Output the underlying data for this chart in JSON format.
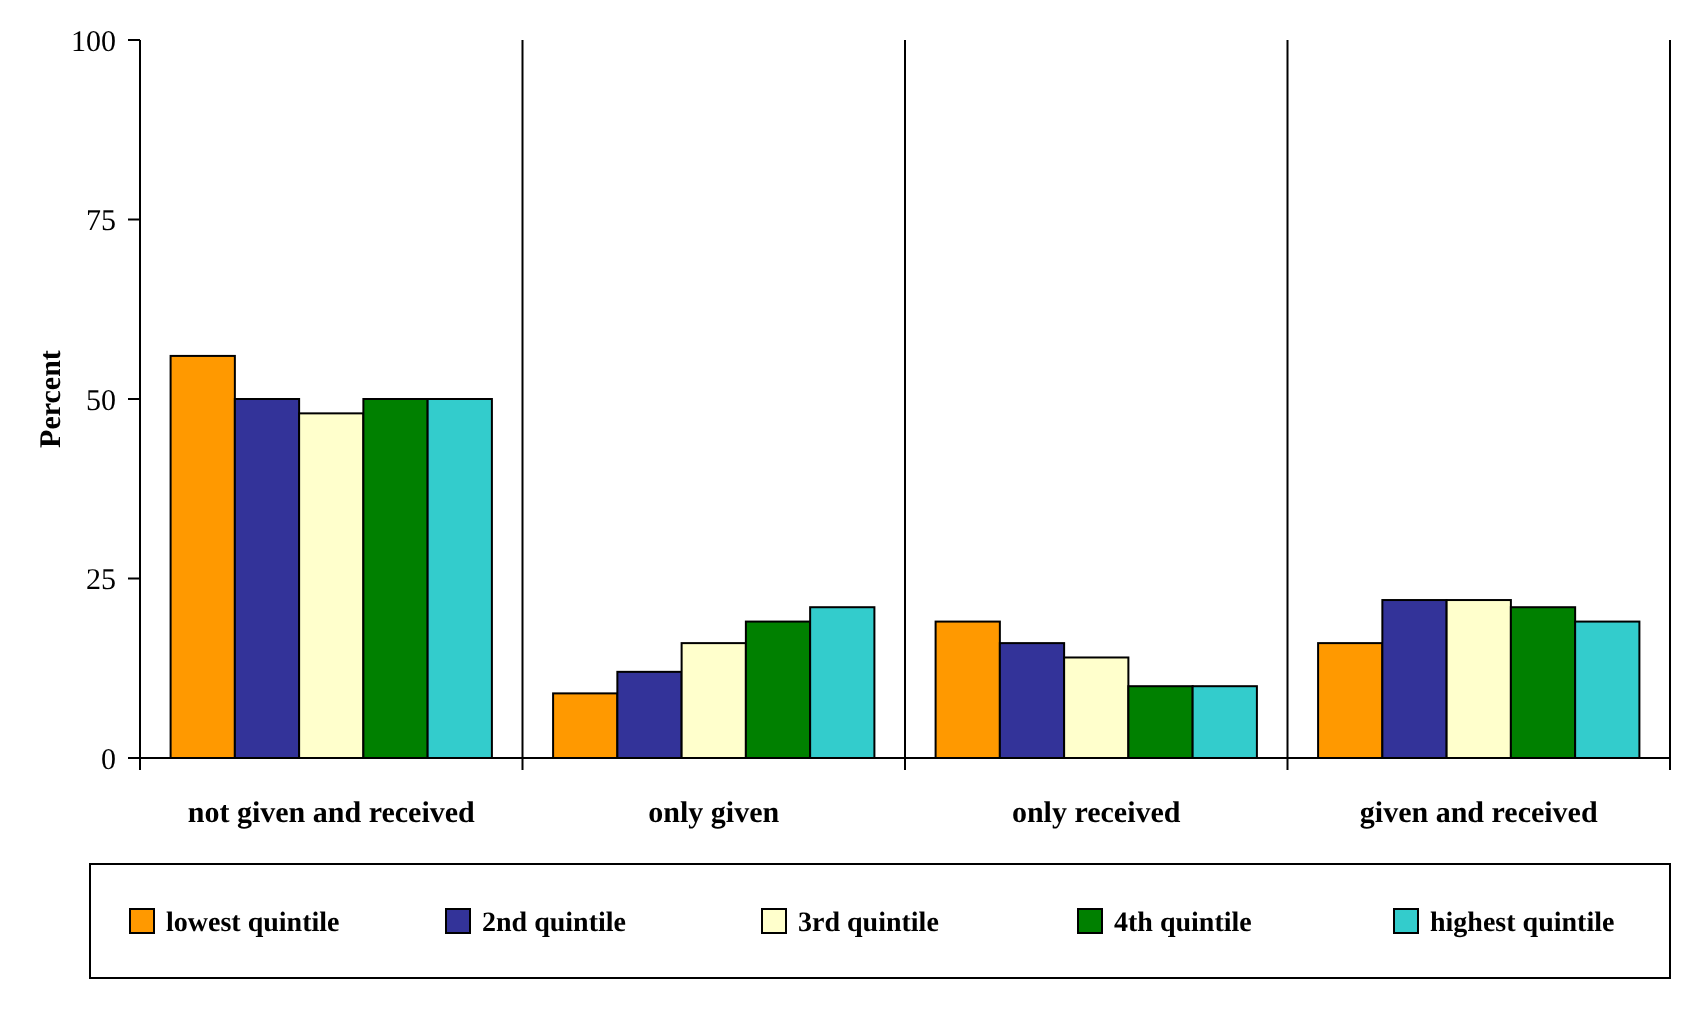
{
  "chart_data": {
    "type": "bar",
    "ylabel": "Percent",
    "categories": [
      "not given and received",
      "only given",
      "only received",
      "given and received"
    ],
    "series": [
      {
        "name": "lowest quintile",
        "color": "#ff9900",
        "values": [
          56,
          9,
          19,
          16
        ]
      },
      {
        "name": "2nd quintile",
        "color": "#333399",
        "values": [
          50,
          12,
          16,
          22
        ]
      },
      {
        "name": "3rd quintile",
        "color": "#ffffcc",
        "values": [
          48,
          16,
          14,
          22
        ]
      },
      {
        "name": "4th quintile",
        "color": "#008000",
        "values": [
          50,
          19,
          10,
          21
        ]
      },
      {
        "name": "highest quintile",
        "color": "#33cccc",
        "values": [
          50,
          21,
          10,
          19
        ]
      }
    ],
    "ylim": [
      0,
      100
    ],
    "yticks": [
      0,
      25,
      50,
      75,
      100
    ],
    "grid": false,
    "legend": "bottom"
  }
}
